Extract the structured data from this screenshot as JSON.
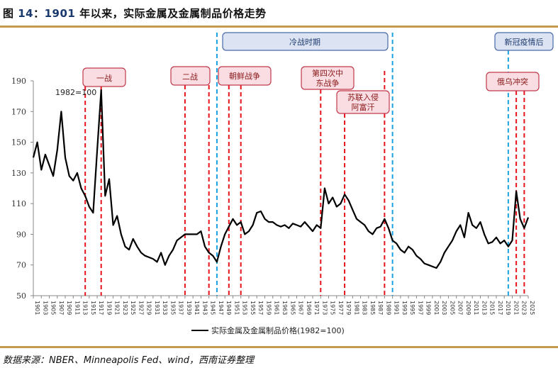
{
  "figure": {
    "title_prefix": "图 ",
    "title_number": "14",
    "title_sep": "：",
    "title_year": "1901",
    "title_text": " 年以来，实际金属及金属制品价格走势",
    "source": "数据来源：NBER、Minneapolis Fed、wind，西南证券整理"
  },
  "chart_data": {
    "type": "line",
    "title": "1901年以来，实际金属及金属制品价格走势",
    "annotation": "1982=100",
    "xlabel": "",
    "ylabel": "",
    "ylim": [
      50,
      190
    ],
    "yticks": [
      50,
      70,
      90,
      110,
      130,
      150,
      170,
      190
    ],
    "xlim": [
      1901,
      2025
    ],
    "xticks": [
      1901,
      1903,
      1905,
      1907,
      1909,
      1911,
      1913,
      1915,
      1917,
      1919,
      1921,
      1923,
      1925,
      1927,
      1929,
      1931,
      1933,
      1935,
      1937,
      1939,
      1941,
      1943,
      1945,
      1947,
      1949,
      1951,
      1953,
      1955,
      1957,
      1959,
      1961,
      1963,
      1965,
      1967,
      1969,
      1971,
      1973,
      1975,
      1977,
      1979,
      1981,
      1983,
      1985,
      1987,
      1989,
      1991,
      1993,
      1995,
      1997,
      1999,
      2001,
      2003,
      2005,
      2007,
      2009,
      2011,
      2013,
      2015,
      2017,
      2019,
      2021,
      2023,
      2025
    ],
    "grid": false,
    "legend_position": "bottom",
    "series": [
      {
        "name": "实际金属及金属制品价格(1982=100)",
        "color": "#000000",
        "x": [
          1901,
          1902,
          1903,
          1904,
          1905,
          1906,
          1907,
          1908,
          1909,
          1910,
          1911,
          1912,
          1913,
          1914,
          1915,
          1916,
          1917,
          1918,
          1919,
          1920,
          1921,
          1922,
          1923,
          1924,
          1925,
          1926,
          1927,
          1928,
          1929,
          1930,
          1931,
          1932,
          1933,
          1934,
          1935,
          1936,
          1937,
          1938,
          1939,
          1940,
          1941,
          1942,
          1943,
          1944,
          1945,
          1946,
          1947,
          1948,
          1949,
          1950,
          1951,
          1952,
          1953,
          1954,
          1955,
          1956,
          1957,
          1958,
          1959,
          1960,
          1961,
          1962,
          1963,
          1964,
          1965,
          1966,
          1967,
          1968,
          1969,
          1970,
          1971,
          1972,
          1973,
          1974,
          1975,
          1976,
          1977,
          1978,
          1979,
          1980,
          1981,
          1982,
          1983,
          1984,
          1985,
          1986,
          1987,
          1988,
          1989,
          1990,
          1991,
          1992,
          1993,
          1994,
          1995,
          1996,
          1997,
          1998,
          1999,
          2000,
          2001,
          2002,
          2003,
          2004,
          2005,
          2006,
          2007,
          2008,
          2009,
          2010,
          2011,
          2012,
          2013,
          2014,
          2015,
          2016,
          2017,
          2018,
          2019,
          2020,
          2021,
          2022,
          2023,
          2024,
          2025
        ],
        "values": [
          140,
          150,
          132,
          142,
          135,
          128,
          145,
          170,
          140,
          128,
          125,
          130,
          120,
          115,
          108,
          104,
          145,
          184,
          115,
          126,
          96,
          102,
          90,
          82,
          80,
          87,
          82,
          78,
          76,
          75,
          74,
          72,
          78,
          70,
          76,
          80,
          86,
          88,
          90,
          90,
          90,
          90,
          92,
          82,
          78,
          76,
          72,
          82,
          90,
          95,
          100,
          96,
          98,
          90,
          92,
          96,
          104,
          105,
          100,
          98,
          98,
          96,
          95,
          96,
          94,
          97,
          96,
          95,
          98,
          95,
          92,
          96,
          94,
          120,
          110,
          114,
          108,
          110,
          116,
          112,
          106,
          100,
          98,
          96,
          92,
          90,
          94,
          95,
          100,
          94,
          86,
          84,
          80,
          78,
          82,
          80,
          76,
          74,
          71,
          70,
          69,
          68,
          72,
          78,
          82,
          86,
          92,
          96,
          88,
          104,
          96,
          94,
          98,
          90,
          84,
          85,
          88,
          84,
          86,
          82,
          86,
          118,
          100,
          94,
          101
        ]
      }
    ],
    "events": [
      {
        "label": "一战",
        "years": [
          1914,
          1918
        ],
        "type": "war"
      },
      {
        "label": "二战",
        "years": [
          1939,
          1945
        ],
        "type": "war"
      },
      {
        "label": "朝鲜战争",
        "years": [
          1950,
          1953
        ],
        "type": "war"
      },
      {
        "label": "第四次中东战争",
        "years": [
          1973
        ],
        "type": "war"
      },
      {
        "label": "苏联入侵阿富汗",
        "years": [
          1979,
          1989
        ],
        "type": "war"
      },
      {
        "label": "俄乌冲突",
        "years": [
          2022,
          2024
        ],
        "type": "war"
      },
      {
        "label": "冷战时期",
        "years": [
          1947,
          1991
        ],
        "type": "period"
      },
      {
        "label": "新冠疫情后",
        "years": [
          2020
        ],
        "type": "period"
      }
    ]
  },
  "labels": {
    "base_annotation": "1982=100",
    "ww1": "一战",
    "ww2": "二战",
    "korea": "朝鲜战争",
    "mideast_1": "第四次中",
    "mideast_2": "东战争",
    "afghan_1": "苏联入侵",
    "afghan_2": "阿富汗",
    "russia_ukraine": "俄乌冲突",
    "cold_war": "冷战时期",
    "post_covid": "新冠疫情后",
    "legend": "实际金属及金属制品价格(1982=100)"
  },
  "colors": {
    "line": "#000000",
    "war_line": "#e8141c",
    "period_line": "#1aa3e0",
    "war_box_fill": "#f9dde3",
    "war_box_border": "#c0394b",
    "period_box_fill": "#dce4f4",
    "period_box_border": "#4a6aa8",
    "rule": "#c39a4e"
  }
}
